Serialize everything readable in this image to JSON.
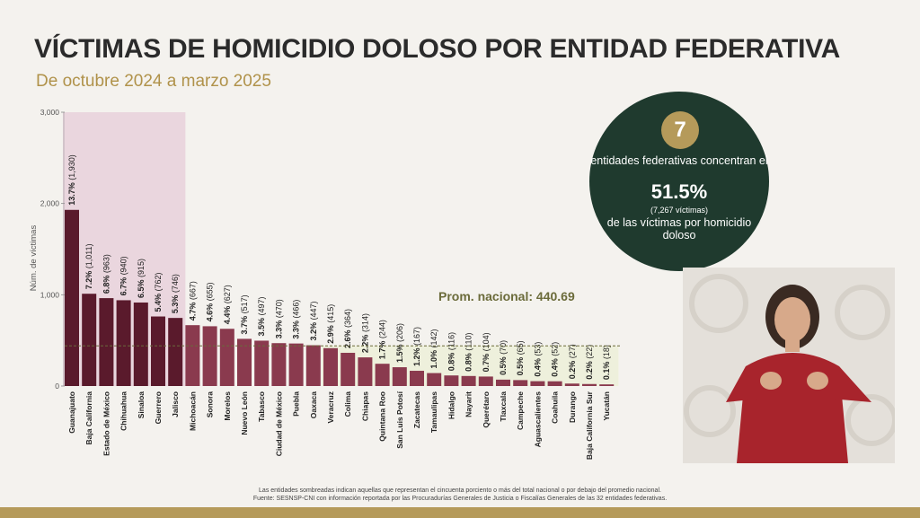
{
  "header": {
    "title": "VÍCTIMAS DE HOMICIDIO DOLOSO POR ENTIDAD FEDERATIVA",
    "subtitle": "De octubre 2024 a marzo 2025"
  },
  "callout": {
    "count": "7",
    "line1": "entidades federativas concentran el",
    "percent": "51.5%",
    "victims_note": "(7,267 víctimas)",
    "line2": "de las víctimas por homicidio doloso"
  },
  "footnote": {
    "line1": "Las entidades sombreadas indican aquellas que representan el cincuenta porciento o más del total nacional o por debajo del promedio nacional.",
    "line2": "Fuente: SESNSP-CNI con información reportada por las Procuradurías Generales de Justicia o Fiscalías Generales de las 32 entidades federativas."
  },
  "colors": {
    "dark_bar": "#5a1a2c",
    "light_bar": "#8a3a4e",
    "highlight_band": "#ead6de",
    "average_band": "#eef0dc",
    "accent_gold": "#b59a5a",
    "callout_green": "#1f3a2e"
  },
  "chart_data": {
    "type": "bar",
    "ylabel": "Núm. de víctimas",
    "ylim": [
      0,
      3000
    ],
    "yticks": [
      "0",
      "1,000",
      "2,000",
      "3,000"
    ],
    "categories": [
      "Guanajuato",
      "Baja California",
      "Estado de México",
      "Chihuahua",
      "Sinaloa",
      "Guerrero",
      "Jalisco",
      "Michoacán",
      "Sonora",
      "Morelos",
      "Nuevo León",
      "Tabasco",
      "Ciudad de México",
      "Puebla",
      "Oaxaca",
      "Veracruz",
      "Colima",
      "Chiapas",
      "Quintana Roo",
      "San Luis Potosí",
      "Zacatecas",
      "Tamaulipas",
      "Hidalgo",
      "Nayarit",
      "Querétaro",
      "Tlaxcala",
      "Campeche",
      "Aguascalientes",
      "Coahuila",
      "Durango",
      "Baja California Sur",
      "Yucatán"
    ],
    "values": [
      1930,
      1011,
      963,
      940,
      915,
      762,
      746,
      667,
      655,
      627,
      517,
      497,
      470,
      466,
      447,
      415,
      364,
      314,
      244,
      206,
      167,
      142,
      116,
      110,
      104,
      70,
      65,
      53,
      52,
      27,
      22,
      18
    ],
    "percents": [
      "13.7%",
      "7.2%",
      "6.8%",
      "6.7%",
      "6.5%",
      "5.4%",
      "5.3%",
      "4.7%",
      "4.6%",
      "4.4%",
      "3.7%",
      "3.5%",
      "3.3%",
      "3.3%",
      "3.2%",
      "2.9%",
      "2.6%",
      "2.2%",
      "1.7%",
      "1.5%",
      "1.2%",
      "1.0%",
      "0.8%",
      "0.8%",
      "0.7%",
      "0.5%",
      "0.5%",
      "0.4%",
      "0.4%",
      "0.2%",
      "0.2%",
      "0.1%"
    ],
    "counts": [
      "(1,930)",
      "(1,011)",
      "(963)",
      "(940)",
      "(915)",
      "(762)",
      "(746)",
      "(667)",
      "(655)",
      "(627)",
      "(517)",
      "(497)",
      "(470)",
      "(466)",
      "(447)",
      "(415)",
      "(364)",
      "(314)",
      "(244)",
      "(206)",
      "(167)",
      "(142)",
      "(116)",
      "(110)",
      "(104)",
      "(70)",
      "(65)",
      "(53)",
      "(52)",
      "(27)",
      "(22)",
      "(18)"
    ],
    "highlighted_count": 7,
    "average": 440.69,
    "average_label": "Prom. nacional: 440.69"
  }
}
